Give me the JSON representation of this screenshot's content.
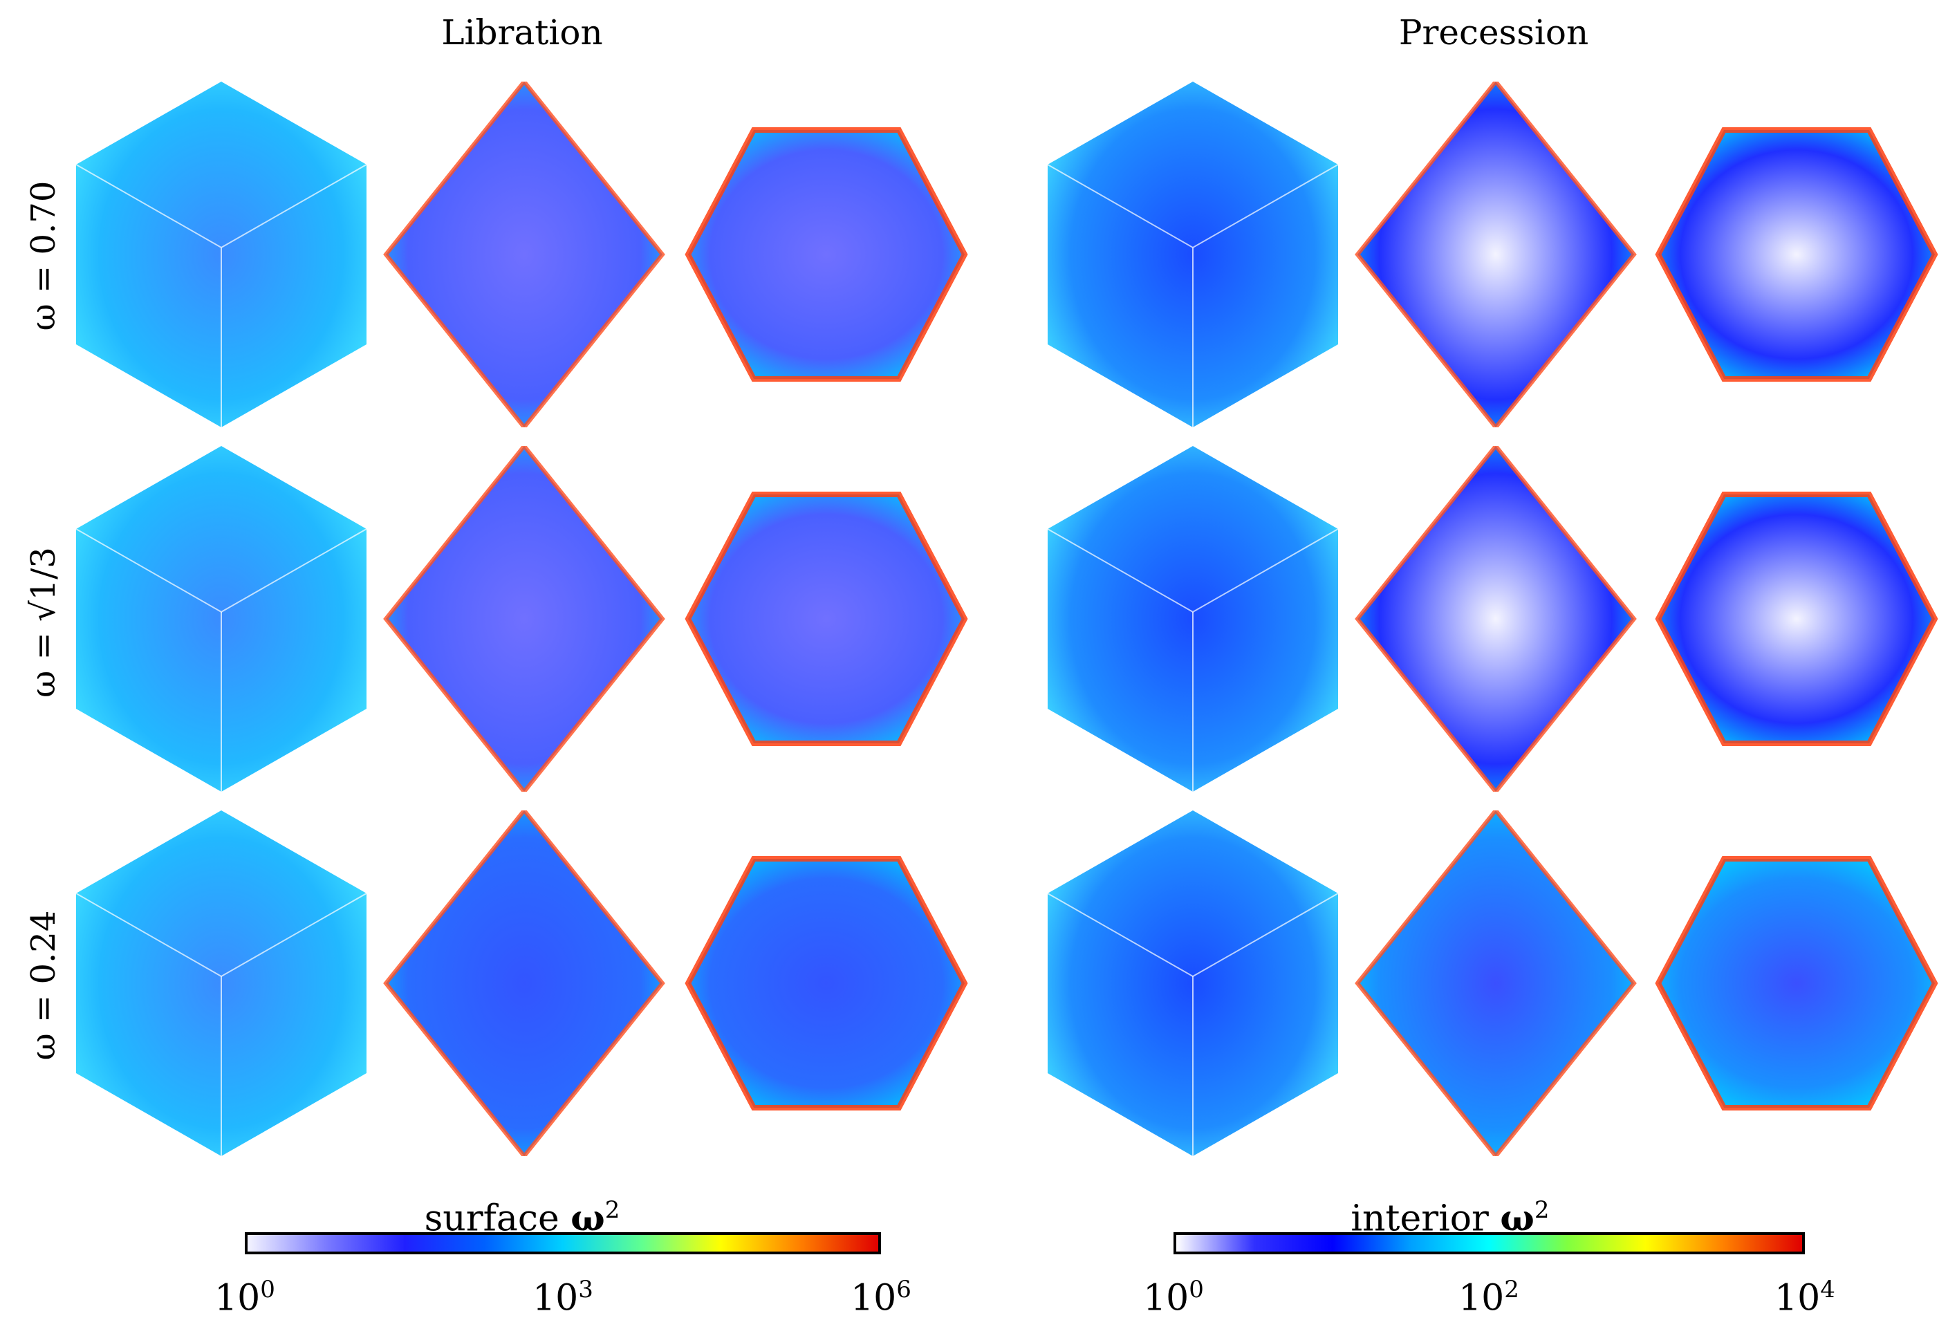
{
  "figure": {
    "left_title": "Libration",
    "right_title": "Precession",
    "rows": [
      {
        "label_prefix": "ω = ",
        "label_value": "0.70"
      },
      {
        "label_prefix": "ω = ",
        "label_value": "√1/3"
      },
      {
        "label_prefix": "ω = ",
        "label_value": "0.24"
      }
    ],
    "panel_views": [
      "cube",
      "diamond",
      "hexagon"
    ]
  },
  "colorbars": [
    {
      "name": "surface",
      "title_word": "surface",
      "title_symbol": "ω",
      "title_exp": "2",
      "ticks": [
        {
          "base": "10",
          "exp": "0"
        },
        {
          "base": "10",
          "exp": "3"
        },
        {
          "base": "10",
          "exp": "6"
        }
      ],
      "colors": [
        "#f4f4ff",
        "#7a7aff",
        "#2020ff",
        "#0060ff",
        "#00d0ff",
        "#60ff90",
        "#ffff00",
        "#ff8000",
        "#e00000"
      ]
    },
    {
      "name": "interior",
      "title_word": "interior",
      "title_symbol": "ω",
      "title_exp": "2",
      "ticks": [
        {
          "base": "10",
          "exp": "0"
        },
        {
          "base": "10",
          "exp": "2"
        },
        {
          "base": "10",
          "exp": "4"
        }
      ],
      "colors": [
        "#ffffff",
        "#3030ff",
        "#0000ff",
        "#00a0ff",
        "#00ffff",
        "#80ff40",
        "#ffff00",
        "#ff8000",
        "#e00000"
      ]
    }
  ]
}
